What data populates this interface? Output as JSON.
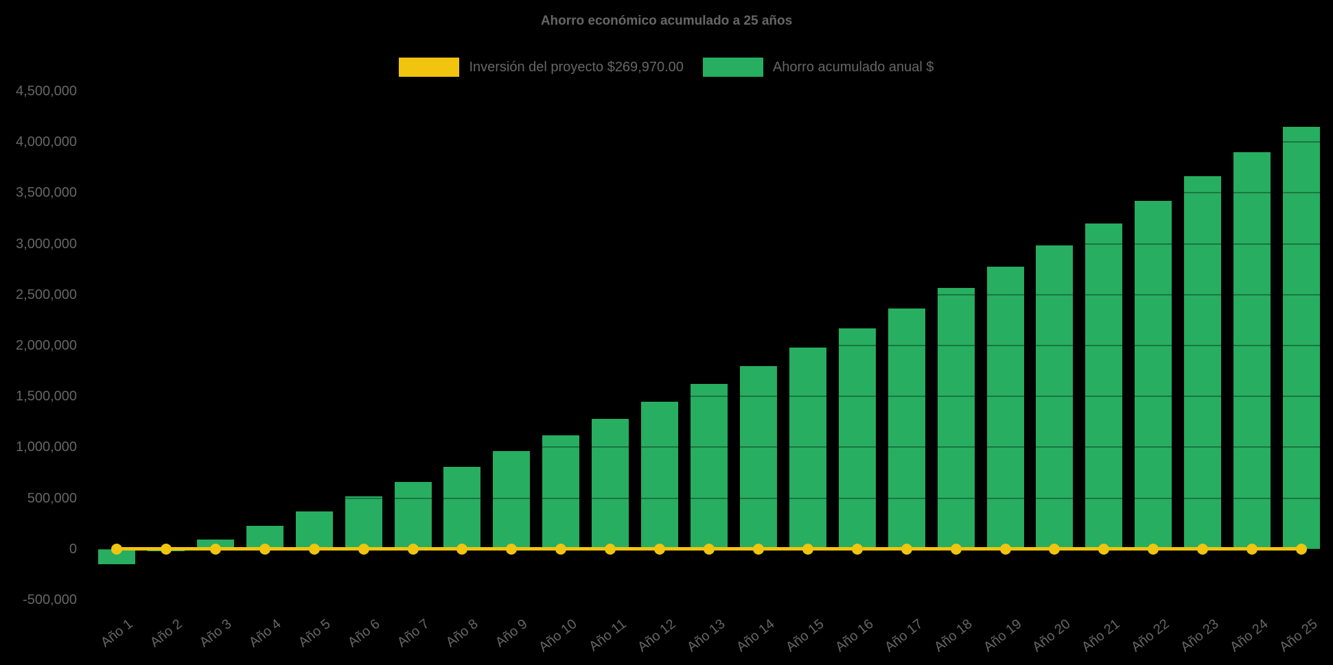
{
  "title": "Ahorro económico acumulado a 25 años",
  "legend": {
    "investment_label": "Inversión del proyecto $269,970.00",
    "savings_label": "Ahorro acumulado anual $"
  },
  "colors": {
    "background": "#000000",
    "bar_green": "#27AE60",
    "line_yellow": "#F1C40F",
    "text_gray": "#666666"
  },
  "chart_data": {
    "type": "bar",
    "title": "Ahorro económico acumulado a 25 años",
    "xlabel": "",
    "ylabel": "",
    "ylim": [
      -500000,
      4500000
    ],
    "grid": "dark overlay gridlines, visible only over bars",
    "legend_position": "top",
    "categories": [
      "Año 1",
      "Año 2",
      "Año 3",
      "Año 4",
      "Año 5",
      "Año 6",
      "Año 7",
      "Año 8",
      "Año 9",
      "Año 10",
      "Año 11",
      "Año 12",
      "Año 13",
      "Año 14",
      "Año 15",
      "Año 16",
      "Año 17",
      "Año 18",
      "Año 19",
      "Año 20",
      "Año 21",
      "Año 22",
      "Año 23",
      "Año 24",
      "Año 25"
    ],
    "series": [
      {
        "name": "Ahorro acumulado anual $",
        "type": "bar",
        "color": "#27AE60",
        "values": [
          -150000,
          -20000,
          90000,
          230000,
          370000,
          520000,
          660000,
          805000,
          960000,
          1115000,
          1280000,
          1450000,
          1625000,
          1800000,
          1980000,
          2170000,
          2365000,
          2565000,
          2775000,
          2985000,
          3200000,
          3420000,
          3665000,
          3900000,
          4150000
        ]
      },
      {
        "name": "Inversión del proyecto $269,970.00",
        "type": "line",
        "color": "#F1C40F",
        "investment_value": 269970,
        "rendered_at_y_value": 0,
        "marker": "circle"
      }
    ],
    "yticks": [
      {
        "value": 4500000,
        "label": "4,500,000"
      },
      {
        "value": 4000000,
        "label": "4,000,000"
      },
      {
        "value": 3500000,
        "label": "3,500,000"
      },
      {
        "value": 3000000,
        "label": "3,000,000"
      },
      {
        "value": 2500000,
        "label": "2,500,000"
      },
      {
        "value": 2000000,
        "label": "2,000,000"
      },
      {
        "value": 1500000,
        "label": "1,500,000"
      },
      {
        "value": 1000000,
        "label": "1,000,000"
      },
      {
        "value": 500000,
        "label": "500,000"
      },
      {
        "value": 0,
        "label": "0"
      },
      {
        "value": -500000,
        "label": "-500,000"
      }
    ]
  }
}
